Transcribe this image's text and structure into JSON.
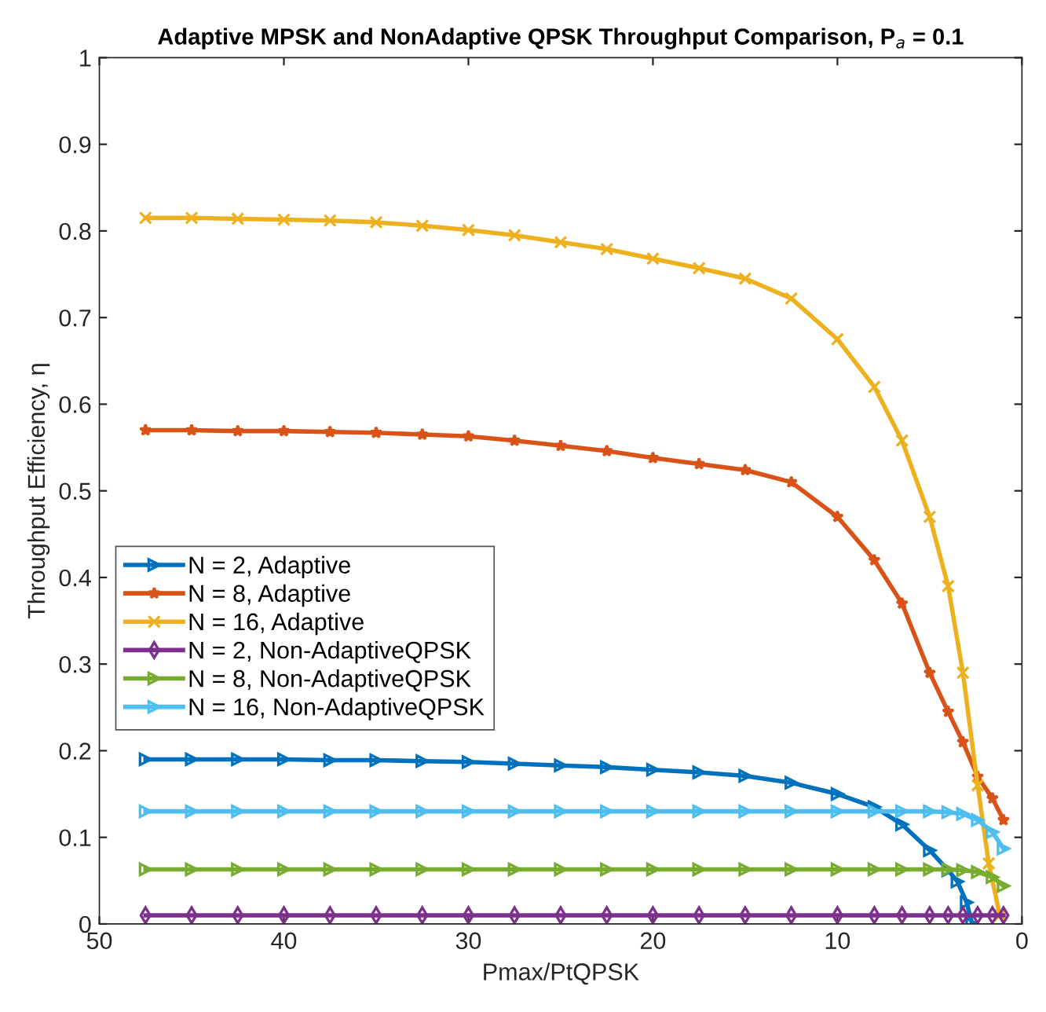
{
  "chart_data": {
    "type": "line",
    "title": "Adaptive MPSK and NonAdaptive QPSK Throughput Comparison, P$_{a}$ = 0.1",
    "xlabel": "Pmax/PtQPSK",
    "ylabel": "Throughput Efficiency, η",
    "xlim": [
      50,
      0
    ],
    "xticks": [
      50,
      40,
      30,
      20,
      10,
      0
    ],
    "ylim": [
      0,
      1
    ],
    "yticks": [
      0,
      0.1,
      0.2,
      0.3,
      0.4,
      0.5,
      0.6,
      0.7,
      0.8,
      0.9,
      1
    ],
    "legend": "left",
    "line_style": "solid",
    "series": [
      {
        "name": "N = 2, Adaptive",
        "color": "#0072bd",
        "marker": "triangle",
        "x": [
          47.5,
          45,
          42.5,
          40,
          37.5,
          35,
          32.5,
          30,
          27.5,
          25,
          22.5,
          20,
          17.5,
          15,
          12.5,
          10,
          8,
          6.5,
          5,
          4,
          3.5,
          3.0,
          2.7
        ],
        "values": [
          0.19,
          0.19,
          0.19,
          0.19,
          0.189,
          0.189,
          0.188,
          0.187,
          0.185,
          0.183,
          0.181,
          0.178,
          0.175,
          0.171,
          0.163,
          0.15,
          0.135,
          0.115,
          0.085,
          0.062,
          0.049,
          0.025,
          0.0
        ]
      },
      {
        "name": "N = 8, Adaptive",
        "color": "#d95319",
        "marker": "star",
        "x": [
          47.5,
          45,
          42.5,
          40,
          37.5,
          35,
          32.5,
          30,
          27.5,
          25,
          22.5,
          20,
          17.5,
          15,
          12.5,
          10,
          8,
          6.5,
          5,
          4,
          3.2,
          2.4,
          1.6,
          1.0
        ],
        "values": [
          0.57,
          0.57,
          0.569,
          0.569,
          0.568,
          0.567,
          0.565,
          0.563,
          0.558,
          0.552,
          0.546,
          0.538,
          0.531,
          0.524,
          0.51,
          0.47,
          0.42,
          0.37,
          0.29,
          0.245,
          0.21,
          0.17,
          0.145,
          0.12
        ]
      },
      {
        "name": "N = 16, Adaptive",
        "color": "#edb120",
        "marker": "cross",
        "x": [
          47.5,
          45,
          42.5,
          40,
          37.5,
          35,
          32.5,
          30,
          27.5,
          25,
          22.5,
          20,
          17.5,
          15,
          12.5,
          10,
          8,
          6.5,
          5,
          4,
          3.2,
          2.4,
          1.8,
          1.2
        ],
        "values": [
          0.815,
          0.815,
          0.814,
          0.813,
          0.812,
          0.81,
          0.806,
          0.801,
          0.795,
          0.787,
          0.779,
          0.768,
          0.757,
          0.745,
          0.722,
          0.675,
          0.62,
          0.558,
          0.47,
          0.39,
          0.29,
          0.16,
          0.07,
          0.01
        ]
      },
      {
        "name": "N = 2, Non-AdaptiveQPSK",
        "color": "#7e2f8e",
        "marker": "diamond",
        "x": [
          47.5,
          45,
          42.5,
          40,
          37.5,
          35,
          32.5,
          30,
          27.5,
          25,
          22.5,
          20,
          17.5,
          15,
          12.5,
          10,
          8,
          6.5,
          5,
          4,
          3.2,
          2.4,
          1.6,
          1.0
        ],
        "values": [
          0.01,
          0.01,
          0.01,
          0.01,
          0.01,
          0.01,
          0.01,
          0.01,
          0.01,
          0.01,
          0.01,
          0.01,
          0.01,
          0.01,
          0.01,
          0.01,
          0.01,
          0.01,
          0.01,
          0.01,
          0.01,
          0.01,
          0.01,
          0.01
        ]
      },
      {
        "name": "N = 8, Non-AdaptiveQPSK",
        "color": "#77ac30",
        "marker": "triangle",
        "x": [
          47.5,
          45,
          42.5,
          40,
          37.5,
          35,
          32.5,
          30,
          27.5,
          25,
          22.5,
          20,
          17.5,
          15,
          12.5,
          10,
          8,
          6.5,
          5,
          4,
          3.2,
          2.4,
          1.6,
          1.0
        ],
        "values": [
          0.063,
          0.063,
          0.063,
          0.063,
          0.063,
          0.063,
          0.063,
          0.063,
          0.063,
          0.063,
          0.063,
          0.063,
          0.063,
          0.063,
          0.063,
          0.063,
          0.063,
          0.063,
          0.063,
          0.063,
          0.062,
          0.06,
          0.054,
          0.044
        ]
      },
      {
        "name": "N = 16, Non-AdaptiveQPSK",
        "color": "#4dbeee",
        "marker": "triangle",
        "x": [
          47.5,
          45,
          42.5,
          40,
          37.5,
          35,
          32.5,
          30,
          27.5,
          25,
          22.5,
          20,
          17.5,
          15,
          12.5,
          10,
          8,
          6.5,
          5,
          4,
          3.2,
          2.4,
          1.6,
          1.0
        ],
        "values": [
          0.13,
          0.13,
          0.13,
          0.13,
          0.13,
          0.13,
          0.13,
          0.13,
          0.13,
          0.13,
          0.13,
          0.13,
          0.13,
          0.13,
          0.13,
          0.13,
          0.13,
          0.13,
          0.13,
          0.129,
          0.127,
          0.12,
          0.106,
          0.087
        ]
      }
    ]
  }
}
